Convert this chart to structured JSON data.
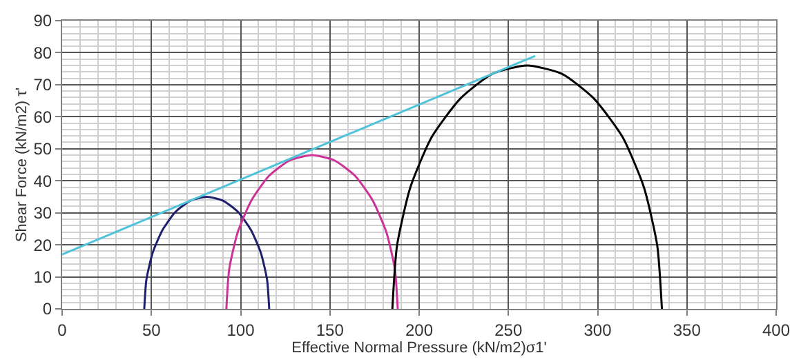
{
  "chart_data": {
    "type": "line",
    "xlabel": "Effective Normal Pressure (kN/m2)σ1'",
    "ylabel": "Shear Force (kN/m2) τ'",
    "xlim": [
      0,
      400
    ],
    "xticks": [
      0,
      50,
      100,
      150,
      200,
      250,
      300,
      350,
      400
    ],
    "ylim": [
      0,
      90
    ],
    "yticks": [
      0,
      10,
      20,
      30,
      40,
      50,
      60,
      70,
      80,
      90
    ],
    "grid": true,
    "marker": "none",
    "line_style": "solid",
    "series": [
      {
        "color": "#1f1f6e",
        "x": [
          46,
          47.2,
          50.7,
          56.3,
          63.5,
          71.9,
          81,
          90.1,
          98.5,
          105.7,
          111.3,
          114.8,
          116
        ],
        "values": [
          0,
          9.1,
          17.5,
          24.7,
          30.3,
          33.8,
          35,
          33.8,
          30.3,
          24.7,
          17.5,
          9.1,
          0
        ]
      },
      {
        "color": "#cc3399",
        "x": [
          92,
          93.6,
          98.4,
          106.1,
          116,
          127.6,
          140,
          152.4,
          164,
          173.9,
          181.6,
          186.4,
          188
        ],
        "values": [
          0,
          12.4,
          24,
          33.9,
          41.6,
          46.4,
          48,
          46.4,
          41.6,
          33.9,
          24,
          12.4,
          0
        ]
      },
      {
        "color": "#000000",
        "x": [
          185,
          187.6,
          195.1,
          207.1,
          223.3,
          241,
          260.5,
          280,
          297.7,
          313.9,
          325.9,
          333.4,
          336
        ],
        "values": [
          0,
          19.7,
          38,
          53.7,
          65.8,
          73.4,
          76,
          73.4,
          65.8,
          53.7,
          38,
          19.7,
          0
        ]
      },
      {
        "color": "#4fc3d9",
        "x": [
          0,
          265
        ],
        "values": [
          17,
          79
        ]
      }
    ]
  }
}
